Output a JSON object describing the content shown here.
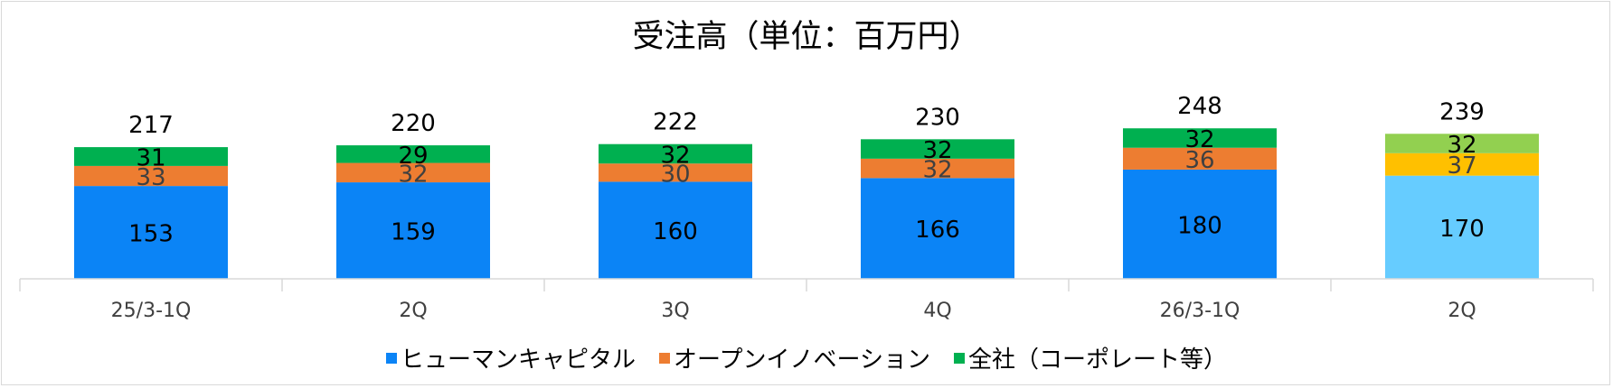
{
  "chart_data": {
    "type": "bar",
    "stacked": true,
    "title": "受注高（単位：百万円）",
    "categories": [
      "25/3-1Q",
      "2Q",
      "3Q",
      "4Q",
      "26/3-1Q",
      "2Q"
    ],
    "series": [
      {
        "name": "ヒューマンキャピタル",
        "values": [
          153,
          159,
          160,
          166,
          180,
          170
        ],
        "color": "#0b84f6"
      },
      {
        "name": "オープンイノベーション",
        "values": [
          33,
          32,
          30,
          32,
          36,
          37
        ],
        "color": "#ed7d31"
      },
      {
        "name": "全社（コーポレート等）",
        "values": [
          31,
          29,
          32,
          32,
          32,
          32
        ],
        "color": "#00b050"
      }
    ],
    "totals": [
      217,
      220,
      222,
      230,
      248,
      239
    ],
    "highlight_last_bar_colors": [
      "#66ccff",
      "#ffc000",
      "#92d050"
    ],
    "ylim": [
      0,
      300
    ],
    "grid": false,
    "legend_position": "bottom"
  }
}
